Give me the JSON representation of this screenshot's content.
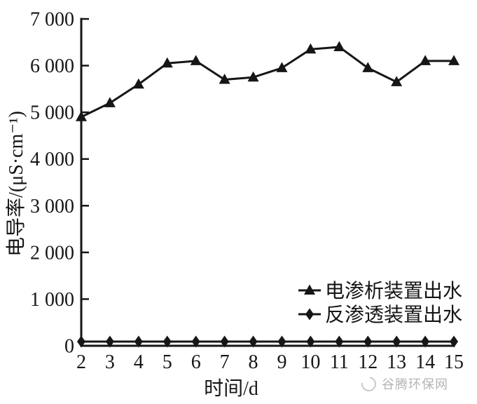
{
  "figure": {
    "background": "#ffffff",
    "ink_color": "#161616"
  },
  "chart_data": {
    "type": "line",
    "title": "",
    "xlabel": "时间/d",
    "ylabel": "电导率/(μS·cm⁻¹)",
    "x": [
      2,
      3,
      4,
      5,
      6,
      7,
      8,
      9,
      10,
      11,
      12,
      13,
      14,
      15
    ],
    "xlim": [
      2,
      15
    ],
    "ylim": [
      0,
      7000
    ],
    "yticks": [
      0,
      1000,
      2000,
      3000,
      4000,
      5000,
      6000,
      7000
    ],
    "ytick_labels": [
      "0",
      "1 000",
      "2 000",
      "3 000",
      "4 000",
      "5 000",
      "6 000",
      "7 000"
    ],
    "grid": false,
    "legend_position": "inside-bottom-right",
    "series": [
      {
        "name": "电渗析装置出水",
        "marker": "triangle",
        "color": "#161616",
        "values": [
          4900,
          5200,
          5600,
          6050,
          6100,
          5700,
          5750,
          5950,
          6350,
          6400,
          5950,
          5650,
          6100,
          6100
        ]
      },
      {
        "name": "反渗透装置出水",
        "marker": "diamond",
        "color": "#161616",
        "values": [
          90,
          90,
          90,
          90,
          90,
          90,
          90,
          90,
          90,
          90,
          90,
          90,
          90,
          90
        ]
      }
    ]
  },
  "watermark": {
    "text": "谷腾环保网"
  }
}
